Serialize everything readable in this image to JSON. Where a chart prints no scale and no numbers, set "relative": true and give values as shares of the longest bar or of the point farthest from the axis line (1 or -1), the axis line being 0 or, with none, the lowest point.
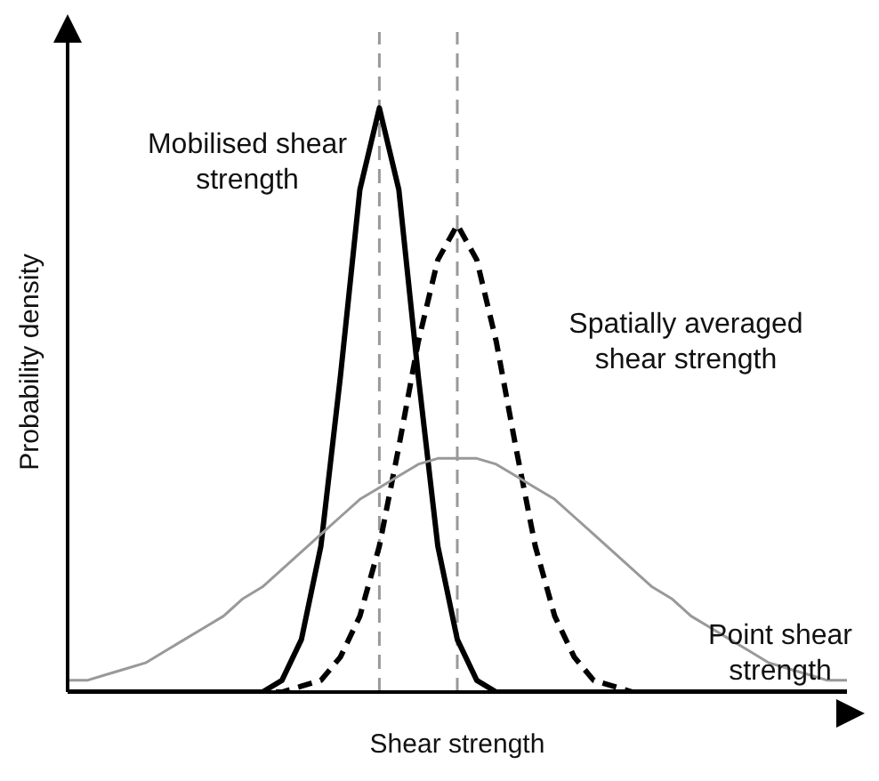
{
  "chart_data": {
    "type": "line",
    "relative": true,
    "xlabel": "Shear strength",
    "ylabel": "Probability density",
    "categories": [
      null,
      null,
      null,
      null,
      null,
      null,
      null,
      null,
      null,
      null,
      null,
      null,
      null,
      null,
      null,
      null,
      null,
      null,
      null,
      null,
      null,
      null,
      null,
      null,
      null,
      null,
      null,
      null,
      null,
      null,
      null,
      null,
      null,
      null,
      null,
      null,
      null,
      null,
      null,
      null,
      null
    ],
    "series": [
      {
        "name": "Mobilised shear strength",
        "color": "#000000",
        "line_style": "solid",
        "values": [
          0,
          0,
          0,
          0,
          0,
          0,
          0,
          0,
          0,
          0,
          0,
          0.02,
          0.09,
          0.25,
          0.54,
          0.86,
          1,
          0.86,
          0.54,
          0.25,
          0.09,
          0.02,
          0,
          0,
          0,
          0,
          0,
          0,
          0,
          0,
          0,
          0,
          0,
          0,
          0,
          0,
          0,
          0,
          0,
          0,
          0
        ]
      },
      {
        "name": "Spatially averaged shear strength",
        "color": "#000000",
        "line_style": "dashed",
        "values": [
          0,
          0,
          0,
          0,
          0,
          0,
          0,
          0,
          0,
          0,
          0,
          0,
          0.01,
          0.02,
          0.06,
          0.13,
          0.25,
          0.42,
          0.6,
          0.74,
          0.8,
          0.74,
          0.6,
          0.42,
          0.25,
          0.13,
          0.06,
          0.02,
          0.01,
          0,
          0,
          0,
          0,
          0,
          0,
          0,
          0,
          0,
          0,
          0,
          0
        ]
      },
      {
        "name": "Point shear strength",
        "color": "#999999",
        "line_style": "solid",
        "values": [
          0.02,
          0.02,
          0.03,
          0.04,
          0.05,
          0.07,
          0.09,
          0.11,
          0.13,
          0.16,
          0.18,
          0.21,
          0.24,
          0.27,
          0.3,
          0.33,
          0.35,
          0.37,
          0.39,
          0.4,
          0.4,
          0.4,
          0.39,
          0.37,
          0.35,
          0.33,
          0.3,
          0.27,
          0.24,
          0.21,
          0.18,
          0.16,
          0.13,
          0.11,
          0.09,
          0.07,
          0.05,
          0.04,
          0.03,
          0.02,
          0.02
        ]
      }
    ]
  }
}
